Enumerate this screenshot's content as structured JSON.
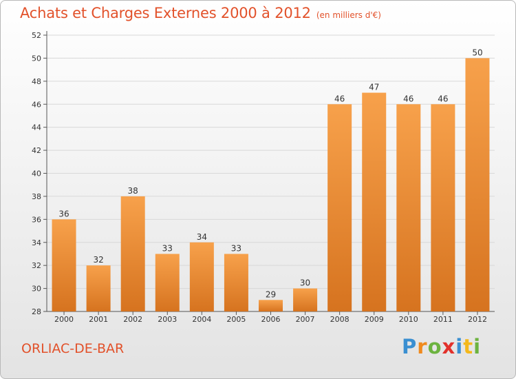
{
  "header": {
    "title": "Achats et Charges Externes 2000 à 2012",
    "subtitle": "(en milliers d'€)"
  },
  "footer": {
    "commune": "ORLIAC-DE-BAR",
    "logo_text": "Proxiti"
  },
  "colors": {
    "title": "#e2512a",
    "bar_light": "#f7a14b",
    "bar_dark": "#d6731f",
    "grid": "#d8d8d8",
    "axis": "#555555"
  },
  "chart_data": {
    "type": "bar",
    "title": "Achats et Charges Externes 2000 à 2012",
    "subtitle": "(en milliers d'€)",
    "categories": [
      "2000",
      "2001",
      "2002",
      "2003",
      "2004",
      "2005",
      "2006",
      "2007",
      "2008",
      "2009",
      "2010",
      "2011",
      "2012"
    ],
    "values": [
      36,
      32,
      38,
      33,
      34,
      33,
      29,
      30,
      46,
      47,
      46,
      46,
      50
    ],
    "data_labels": [
      "36",
      "32",
      "38",
      "33",
      "34",
      "33",
      "29",
      "30",
      "46",
      "47",
      "46",
      "46",
      "50"
    ],
    "ylim": [
      28,
      52
    ],
    "yticks": [
      28,
      30,
      32,
      34,
      36,
      38,
      40,
      42,
      44,
      46,
      48,
      50,
      52
    ],
    "grid": true,
    "xlabel": "",
    "ylabel": ""
  }
}
